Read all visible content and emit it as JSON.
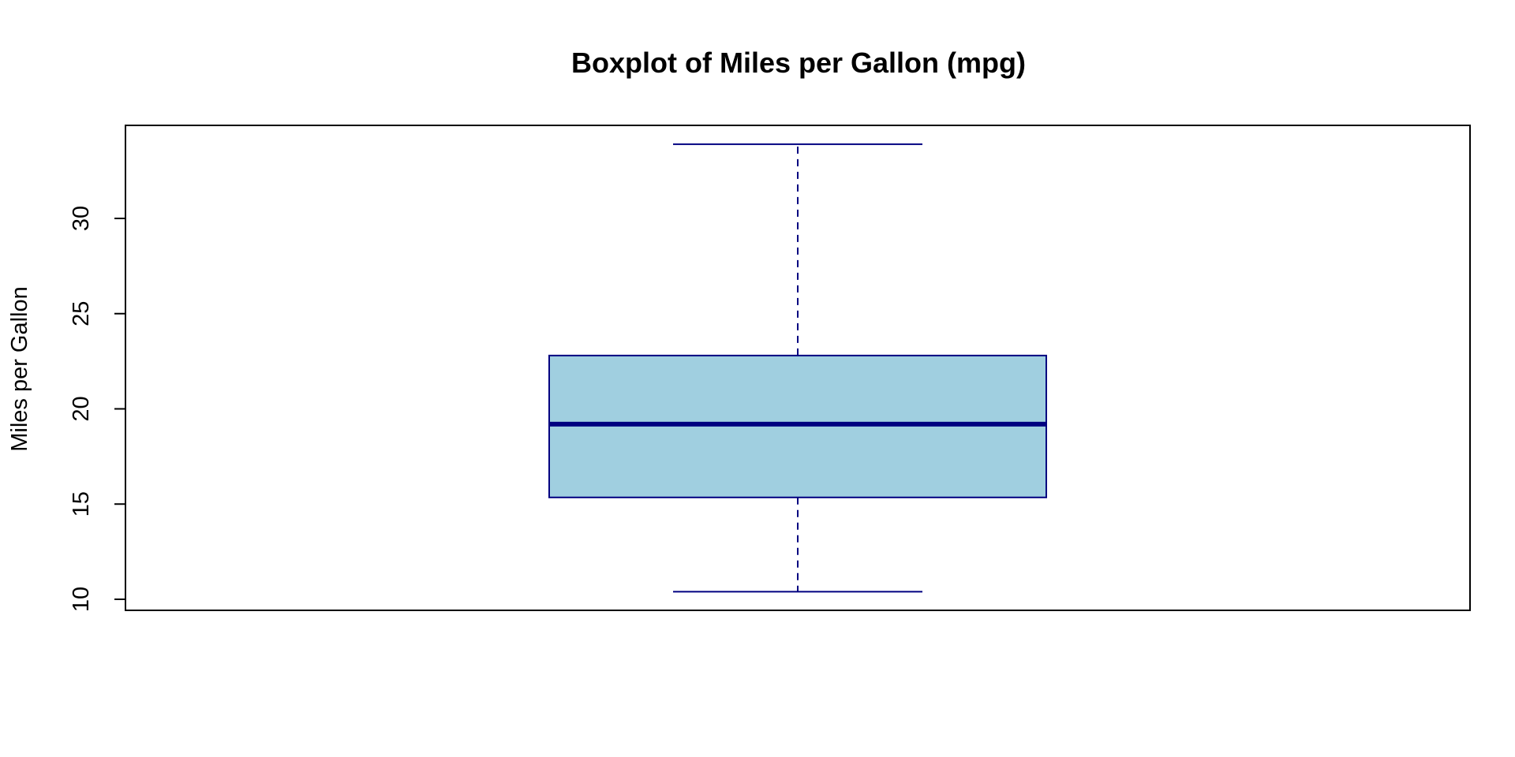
{
  "chart_data": {
    "type": "boxplot",
    "title": "Boxplot of Miles per Gallon (mpg)",
    "ylabel": "Miles per Gallon",
    "xlabel": "",
    "ylim": [
      10,
      35
    ],
    "yticks": [
      10,
      15,
      20,
      25,
      30
    ],
    "ytick_labels": [
      "10",
      "15",
      "20",
      "25",
      "30"
    ],
    "grid": false,
    "box": {
      "whisker_low": 10.4,
      "q1": 15.35,
      "median": 19.2,
      "q3": 22.8,
      "whisker_high": 33.9
    },
    "colors": {
      "fill": "#a0cfe0",
      "stroke": "#000080",
      "frame": "#000000"
    }
  }
}
